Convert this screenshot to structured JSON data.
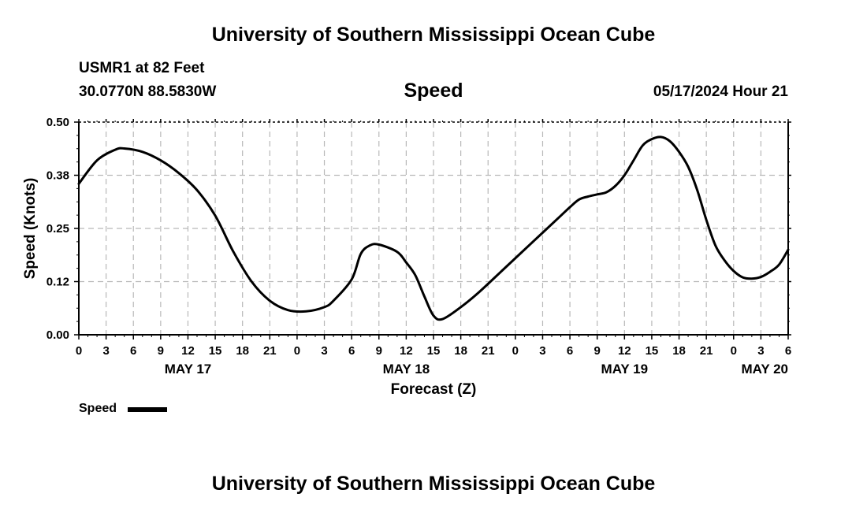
{
  "header": {
    "title": "University of Southern Mississippi Ocean Cube",
    "station": "USMR1 at 82 Feet",
    "coordinates": "30.0770N  88.5830W",
    "issued": "05/17/2024 Hour 21"
  },
  "footer": {
    "title": "University of Southern Mississippi Ocean Cube"
  },
  "legend": {
    "label": "Speed",
    "color": "#000000"
  },
  "chart_data": {
    "type": "line",
    "title": "Speed",
    "xlabel": "Forecast (Z)",
    "ylabel": "Speed (Knots)",
    "ylim": [
      0,
      0.5
    ],
    "y_ticks": [
      "0.00",
      "0.12",
      "0.25",
      "0.38",
      "0.50"
    ],
    "x_range_hours": [
      0,
      78
    ],
    "x_tick_labels": [
      "0",
      "3",
      "6",
      "9",
      "12",
      "15",
      "18",
      "21",
      "0",
      "3",
      "6",
      "9",
      "12",
      "15",
      "18",
      "21",
      "0",
      "3",
      "6",
      "9",
      "12",
      "15",
      "18",
      "21",
      "0",
      "3",
      "6"
    ],
    "date_labels": [
      {
        "label": "MAY 17",
        "hour": 12
      },
      {
        "label": "MAY 18",
        "hour": 36
      },
      {
        "label": "MAY 19",
        "hour": 60
      },
      {
        "label": "MAY 20",
        "hour": 78
      }
    ],
    "grid": true,
    "series": [
      {
        "name": "Speed",
        "color": "#000000",
        "points": [
          [
            0,
            0.355
          ],
          [
            2,
            0.41
          ],
          [
            4,
            0.435
          ],
          [
            5,
            0.438
          ],
          [
            7,
            0.43
          ],
          [
            9,
            0.41
          ],
          [
            11,
            0.38
          ],
          [
            13,
            0.34
          ],
          [
            15,
            0.28
          ],
          [
            17,
            0.195
          ],
          [
            19,
            0.125
          ],
          [
            21,
            0.08
          ],
          [
            23,
            0.058
          ],
          [
            25,
            0.055
          ],
          [
            27,
            0.065
          ],
          [
            28,
            0.08
          ],
          [
            30,
            0.13
          ],
          [
            31,
            0.19
          ],
          [
            32,
            0.21
          ],
          [
            33,
            0.212
          ],
          [
            35,
            0.195
          ],
          [
            36,
            0.17
          ],
          [
            37,
            0.14
          ],
          [
            38,
            0.09
          ],
          [
            39,
            0.045
          ],
          [
            40,
            0.037
          ],
          [
            42,
            0.065
          ],
          [
            44,
            0.1
          ],
          [
            47,
            0.16
          ],
          [
            50,
            0.22
          ],
          [
            53,
            0.28
          ],
          [
            54,
            0.3
          ],
          [
            55,
            0.318
          ],
          [
            56,
            0.325
          ],
          [
            57,
            0.33
          ],
          [
            58,
            0.335
          ],
          [
            59,
            0.35
          ],
          [
            60,
            0.375
          ],
          [
            61,
            0.41
          ],
          [
            62,
            0.445
          ],
          [
            63,
            0.46
          ],
          [
            64,
            0.465
          ],
          [
            65,
            0.455
          ],
          [
            66,
            0.43
          ],
          [
            67,
            0.395
          ],
          [
            68,
            0.34
          ],
          [
            69,
            0.27
          ],
          [
            70,
            0.21
          ],
          [
            71,
            0.175
          ],
          [
            72,
            0.15
          ],
          [
            73,
            0.135
          ],
          [
            74,
            0.132
          ],
          [
            75,
            0.136
          ],
          [
            76,
            0.148
          ],
          [
            77,
            0.165
          ],
          [
            78,
            0.2
          ]
        ]
      }
    ]
  }
}
